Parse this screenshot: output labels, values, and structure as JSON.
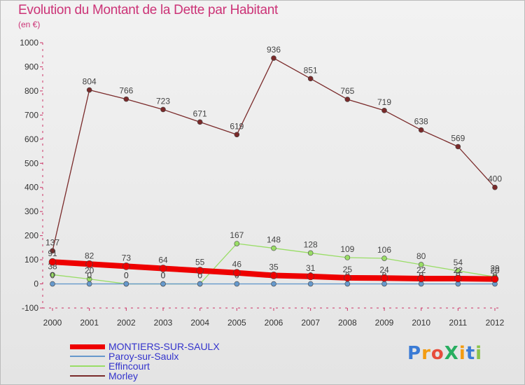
{
  "header": {
    "title": "Evolution du Montant de la Dette par Habitant",
    "subtitle": "(en €)"
  },
  "logo": {
    "text": "ProXiti",
    "letters": [
      {
        "ch": "P",
        "color": "#3a7bd5"
      },
      {
        "ch": "r",
        "color": "#f39c12"
      },
      {
        "ch": "o",
        "color": "#e74c3c"
      },
      {
        "ch": "X",
        "color": "#27ae60"
      },
      {
        "ch": "i",
        "color": "#f39c12"
      },
      {
        "ch": "t",
        "color": "#3a7bd5"
      },
      {
        "ch": "i",
        "color": "#8bc34a"
      }
    ]
  },
  "chart_data": {
    "type": "line",
    "title": "Evolution du Montant de la Dette par Habitant",
    "ylabel": "(en €)",
    "xlabel": "",
    "ylim": [
      -100,
      1000
    ],
    "yticks": [
      "-100",
      "0",
      "100",
      "200",
      "300",
      "400",
      "500",
      "600",
      "700",
      "800",
      "900",
      "1000"
    ],
    "ytick_values": [
      -100,
      0,
      100,
      200,
      300,
      400,
      500,
      600,
      700,
      800,
      900,
      1000
    ],
    "categories": [
      "2000",
      "2001",
      "2002",
      "2003",
      "2004",
      "2005",
      "2006",
      "2007",
      "2008",
      "2009",
      "2010",
      "2011",
      "2012"
    ],
    "grid": false,
    "legend_position": "bottom-left",
    "series": [
      {
        "name": "Morley",
        "color": "#7a2a2a",
        "values": [
          137,
          804,
          766,
          723,
          671,
          619,
          936,
          851,
          765,
          719,
          638,
          569,
          400
        ],
        "labels": [
          "137",
          "804",
          "766",
          "723",
          "671",
          "619",
          "936",
          "851",
          "765",
          "719",
          "638",
          "569",
          "400"
        ]
      },
      {
        "name": "Effincourt",
        "color": "#99dd66",
        "values": [
          38,
          20,
          0,
          0,
          0,
          167,
          148,
          128,
          109,
          106,
          80,
          54,
          29
        ],
        "labels": [
          "38",
          "20",
          "0",
          "0",
          "0",
          "167",
          "148",
          "128",
          "109",
          "106",
          "80",
          "54",
          "29"
        ]
      },
      {
        "name": "Paroy-sur-Saulx",
        "color": "#6699cc",
        "values": [
          0,
          0,
          0,
          0,
          0,
          0,
          0,
          0,
          0,
          0,
          0,
          0,
          0
        ],
        "labels": [
          "0",
          "0",
          "0",
          "0",
          "0",
          "0",
          "0",
          "0",
          "0",
          "0",
          "0",
          "0",
          "0"
        ]
      },
      {
        "name": "MONTIERS-SUR-SAULX",
        "color": "#ee0000",
        "values": [
          91,
          82,
          73,
          64,
          55,
          46,
          35,
          31,
          25,
          24,
          22,
          22,
          20
        ],
        "labels": [
          "91",
          "82",
          "73",
          "64",
          "55",
          "46",
          "35",
          "31",
          "25",
          "24",
          "22",
          "22",
          "20"
        ]
      }
    ],
    "legend": [
      {
        "name": "MONTIERS-SUR-SAULX",
        "color": "#ee0000"
      },
      {
        "name": "Paroy-sur-Saulx",
        "color": "#6699cc"
      },
      {
        "name": "Effincourt",
        "color": "#99dd66"
      },
      {
        "name": "Morley",
        "color": "#7a2a2a"
      }
    ]
  }
}
